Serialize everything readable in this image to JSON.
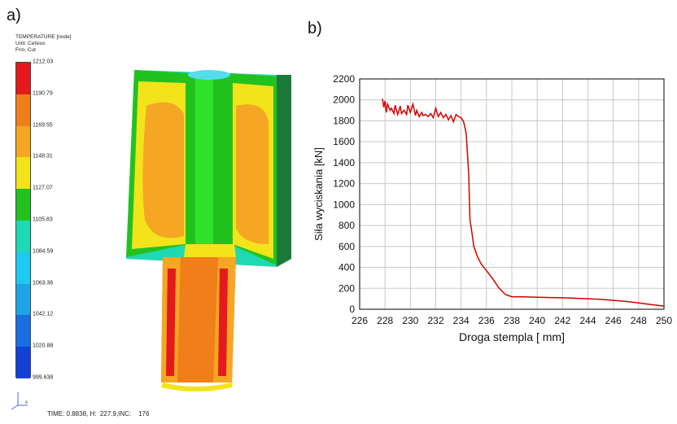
{
  "panel_a": {
    "label": "a)",
    "legend": {
      "title": "TEMPERATURE [node]",
      "unit": "Unit: Celsius",
      "mode": "Frin, Cut",
      "ticks": [
        "1212.03",
        "1190.79",
        "1169.55",
        "1148.31",
        "1127.07",
        "1105.83",
        "1084.59",
        "1063.36",
        "1042.12",
        "1020.88",
        "999.638"
      ],
      "colors": [
        "#e41a1c",
        "#f07f19",
        "#f5a623",
        "#f2e31a",
        "#22c21e",
        "#1fd9b4",
        "#1ec8f0",
        "#1fa3e8",
        "#1a6fe0",
        "#1440d8"
      ]
    },
    "status": {
      "time_label": "TIME: 0.8838",
      "h_label": ", H:  227.9",
      "inc_label": ",INC:    176"
    },
    "axis_marker": "x"
  },
  "panel_b": {
    "label": "b)"
  },
  "chart_data": {
    "type": "line",
    "title": "",
    "xlabel": "Droga stempla [ mm]",
    "ylabel": "Siła wyciskania [kN]",
    "xlim": [
      226,
      250
    ],
    "ylim": [
      0,
      2200
    ],
    "xticks": [
      226,
      228,
      230,
      232,
      234,
      236,
      238,
      240,
      242,
      244,
      246,
      248,
      250
    ],
    "yticks": [
      0,
      200,
      400,
      600,
      800,
      1000,
      1200,
      1400,
      1600,
      1800,
      2000,
      2200
    ],
    "grid": true,
    "series": [
      {
        "name": "",
        "color": "#d40000",
        "x": [
          227.8,
          227.9,
          228.0,
          228.1,
          228.2,
          228.4,
          228.5,
          228.7,
          228.8,
          229.0,
          229.2,
          229.3,
          229.5,
          229.7,
          229.8,
          230.0,
          230.2,
          230.4,
          230.5,
          230.7,
          230.9,
          231.0,
          231.2,
          231.4,
          231.6,
          231.8,
          232.0,
          232.2,
          232.4,
          232.6,
          232.8,
          233.0,
          233.2,
          233.4,
          233.6,
          233.8,
          234.0,
          234.2,
          234.4,
          234.6,
          234.7,
          234.8,
          235.0,
          235.3,
          235.6,
          236.0,
          236.5,
          237.0,
          237.5,
          238.0,
          239.0,
          240.0,
          241.0,
          242.0,
          243.0,
          244.0,
          245.0,
          246.0,
          247.0,
          248.0,
          249.0,
          250.0
        ],
        "y": [
          2010,
          1930,
          1990,
          1880,
          1960,
          1900,
          1920,
          1870,
          1950,
          1860,
          1940,
          1870,
          1900,
          1860,
          1950,
          1880,
          1960,
          1850,
          1900,
          1840,
          1880,
          1850,
          1860,
          1840,
          1870,
          1830,
          1920,
          1840,
          1880,
          1830,
          1860,
          1810,
          1850,
          1790,
          1860,
          1840,
          1830,
          1790,
          1680,
          1300,
          850,
          780,
          600,
          500,
          430,
          370,
          290,
          200,
          140,
          120,
          118,
          115,
          112,
          110,
          105,
          100,
          95,
          85,
          75,
          60,
          45,
          30
        ]
      }
    ]
  }
}
